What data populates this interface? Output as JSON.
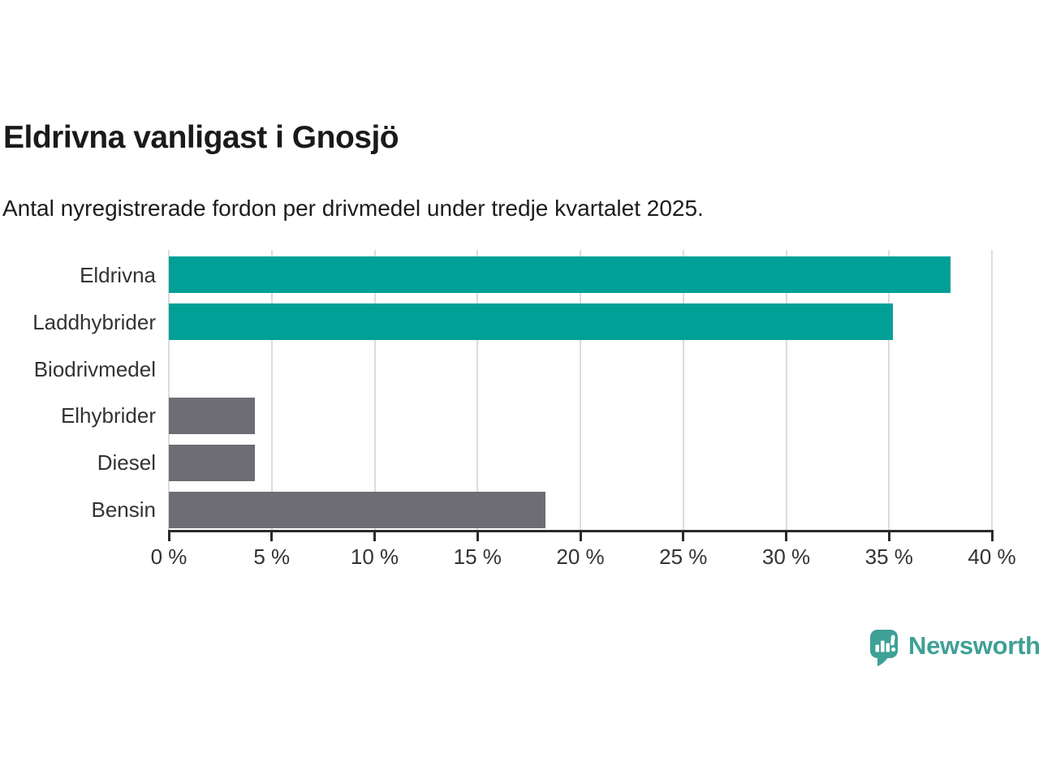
{
  "header": {
    "title": "Eldrivna vanligast i Gnosjö",
    "subtitle": "Antal nyregistrerade fordon per drivmedel under tredje kvartalet 2025."
  },
  "chart_data": {
    "type": "bar",
    "orientation": "horizontal",
    "title": "Eldrivna vanligast i Gnosjö",
    "subtitle": "Antal nyregistrerade fordon per drivmedel under tredje kvartalet 2025.",
    "categories": [
      "Eldrivna",
      "Laddhybrider",
      "Biodrivmedel",
      "Elhybrider",
      "Diesel",
      "Bensin"
    ],
    "values": [
      38.0,
      35.2,
      0,
      4.2,
      4.2,
      18.3
    ],
    "unit": "%",
    "xlabel": "",
    "ylabel": "",
    "xlim": [
      0,
      40
    ],
    "x_ticks": [
      0,
      5,
      10,
      15,
      20,
      25,
      30,
      35,
      40
    ],
    "x_tick_labels": [
      "0 %",
      "5 %",
      "10 %",
      "15 %",
      "20 %",
      "25 %",
      "30 %",
      "35 %",
      "40 %"
    ],
    "grid": "vertical",
    "legend": "none",
    "colors": {
      "highlight": "#00a096",
      "default": "#6e6d76",
      "gridline": "#dcdcdc",
      "axis": "#2b2b2b",
      "text": "#333333"
    },
    "bar_colors": [
      "#00a096",
      "#00a096",
      "#6e6d76",
      "#6e6d76",
      "#6e6d76",
      "#6e6d76"
    ]
  },
  "footer": {
    "brand": "Newsworthy",
    "logo_icon": "speech-bubble-bar-chart-icon",
    "brand_color": "#3fa096"
  }
}
